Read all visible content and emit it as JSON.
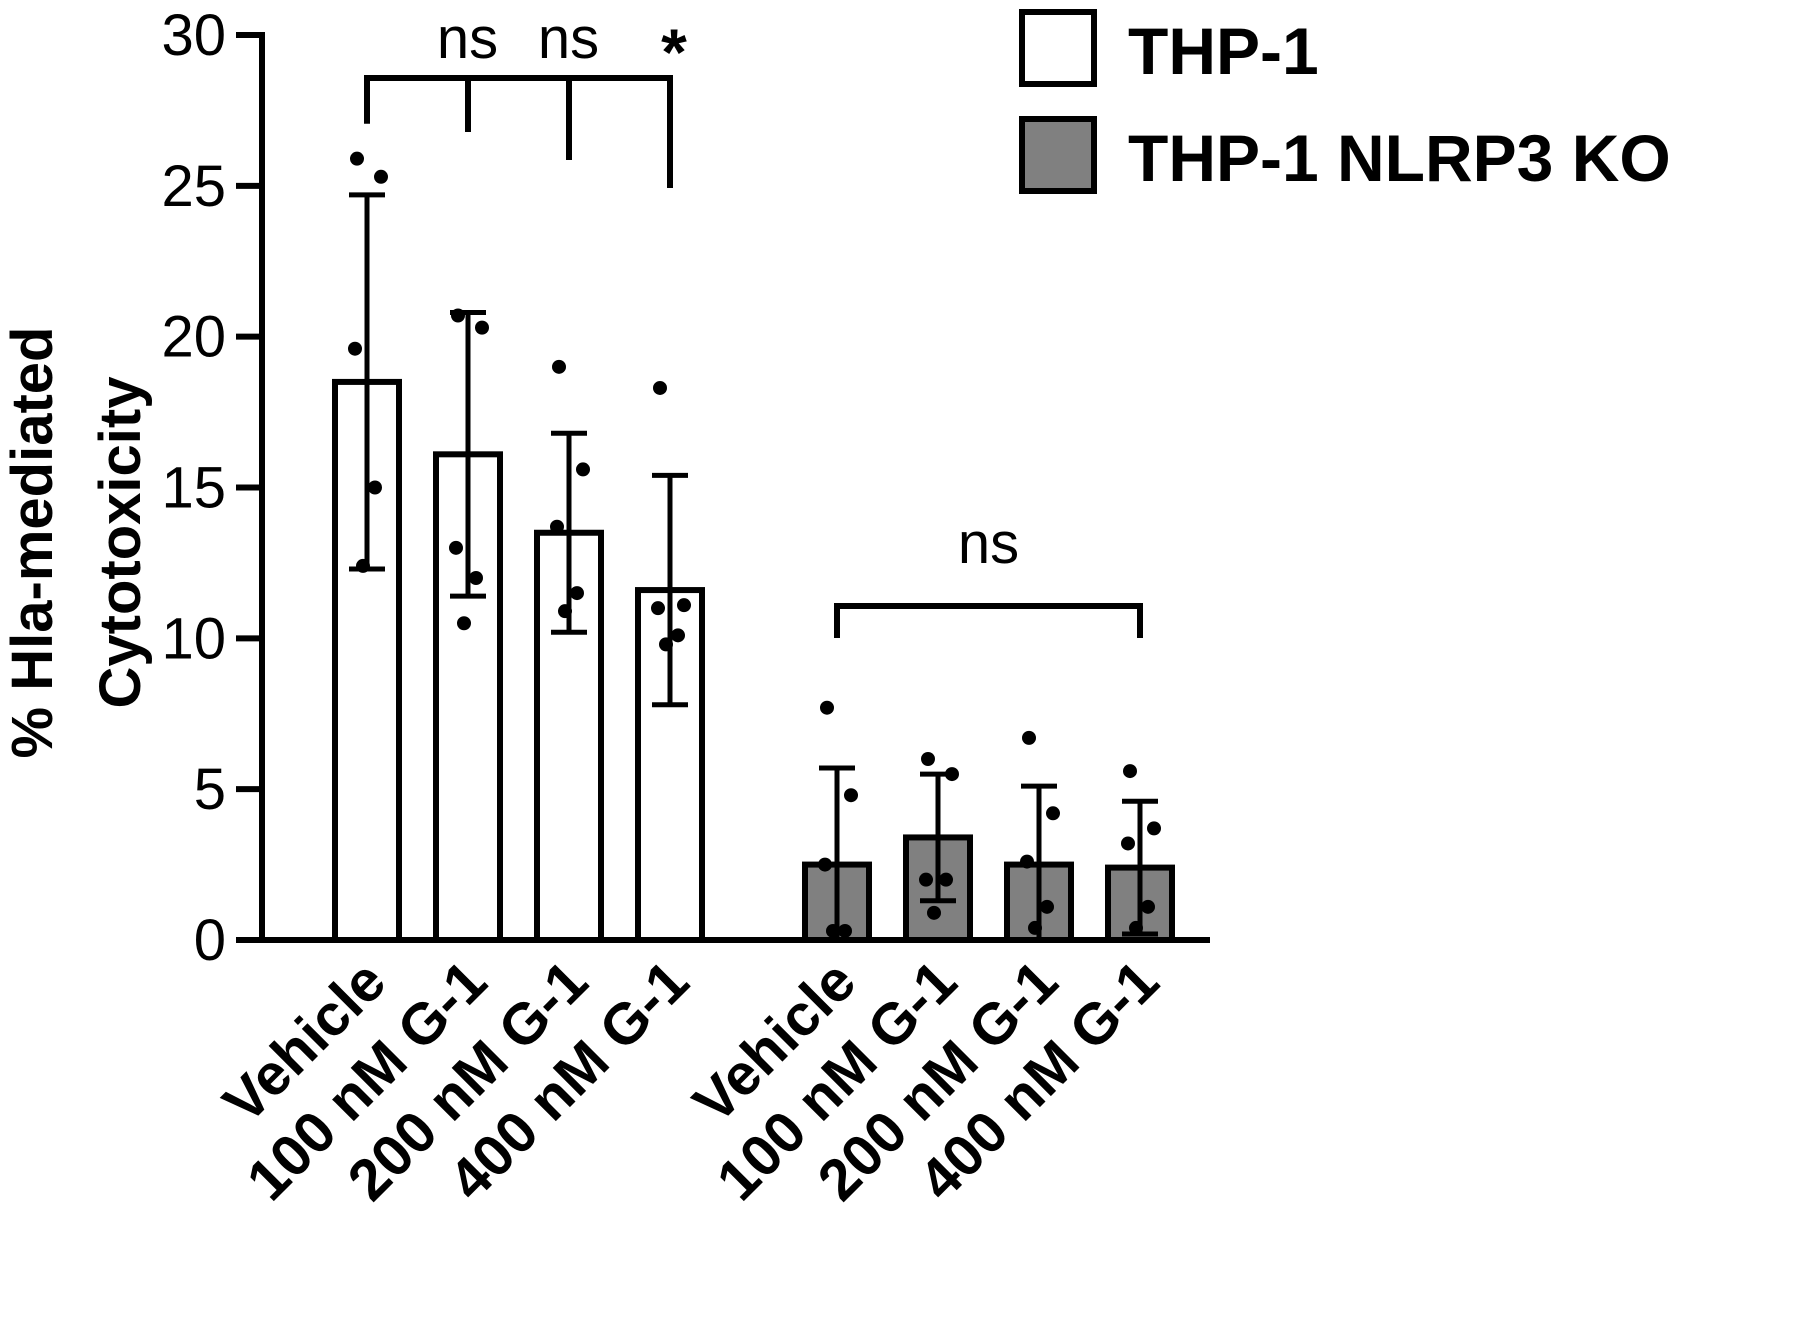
{
  "chart_data": {
    "type": "bar",
    "title": "",
    "ylabel": [
      "% Hla-mediated",
      "Cytotoxicity"
    ],
    "xlabel": "",
    "ylim": [
      0,
      30
    ],
    "yticks": [
      0,
      5,
      10,
      15,
      20,
      25,
      30
    ],
    "grid": false,
    "legend_position": "top-right",
    "categories": [
      "Vehicle",
      "100 nM G-1",
      "200 nM G-1",
      "400 nM G-1"
    ],
    "series": [
      {
        "name": "THP-1",
        "color": "#ffffff",
        "values": [
          18.5,
          16.1,
          13.5,
          11.6
        ],
        "errors": [
          6.2,
          4.7,
          3.3,
          3.8
        ],
        "points": [
          [
            25.9,
            25.3,
            19.6,
            15.0,
            12.4
          ],
          [
            20.7,
            20.3,
            13.0,
            12.0,
            10.5
          ],
          [
            19.0,
            15.6,
            13.7,
            11.5,
            10.9
          ],
          [
            18.3,
            11.1,
            11.0,
            10.1,
            9.8
          ]
        ]
      },
      {
        "name": "THP-1 NLRP3 KO",
        "color": "#808080",
        "values": [
          2.5,
          3.4,
          2.5,
          2.4
        ],
        "errors": [
          3.2,
          2.1,
          2.6,
          2.2
        ],
        "points": [
          [
            7.7,
            4.8,
            2.5,
            0.3,
            0.3
          ],
          [
            6.0,
            5.5,
            2.0,
            2.0,
            0.9
          ],
          [
            6.7,
            4.2,
            2.6,
            1.1,
            0.4
          ],
          [
            5.6,
            3.7,
            3.2,
            1.1,
            0.4
          ]
        ]
      }
    ],
    "annotations": [
      {
        "text": "ns",
        "group": 0,
        "from": 0,
        "to": 1
      },
      {
        "text": "ns",
        "group": 0,
        "from": 0,
        "to": 2
      },
      {
        "text": "*",
        "group": 0,
        "from": 0,
        "to": 3
      },
      {
        "text": "ns",
        "group": 1,
        "from": 0,
        "to": 3
      }
    ]
  }
}
